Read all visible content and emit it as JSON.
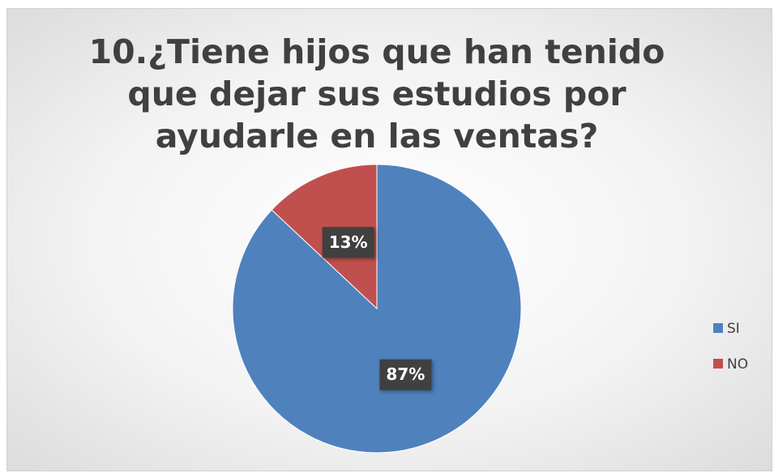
{
  "chart_data": {
    "type": "pie",
    "title": "10.¿Tiene hijos que han tenido que dejar sus estudios por ayudarle en las ventas?",
    "categories": [
      "SI",
      "NO"
    ],
    "values": [
      87,
      13
    ],
    "value_labels": [
      "87%",
      "13%"
    ],
    "colors": [
      "#4f81bd",
      "#c0504d"
    ],
    "legend": "right"
  }
}
